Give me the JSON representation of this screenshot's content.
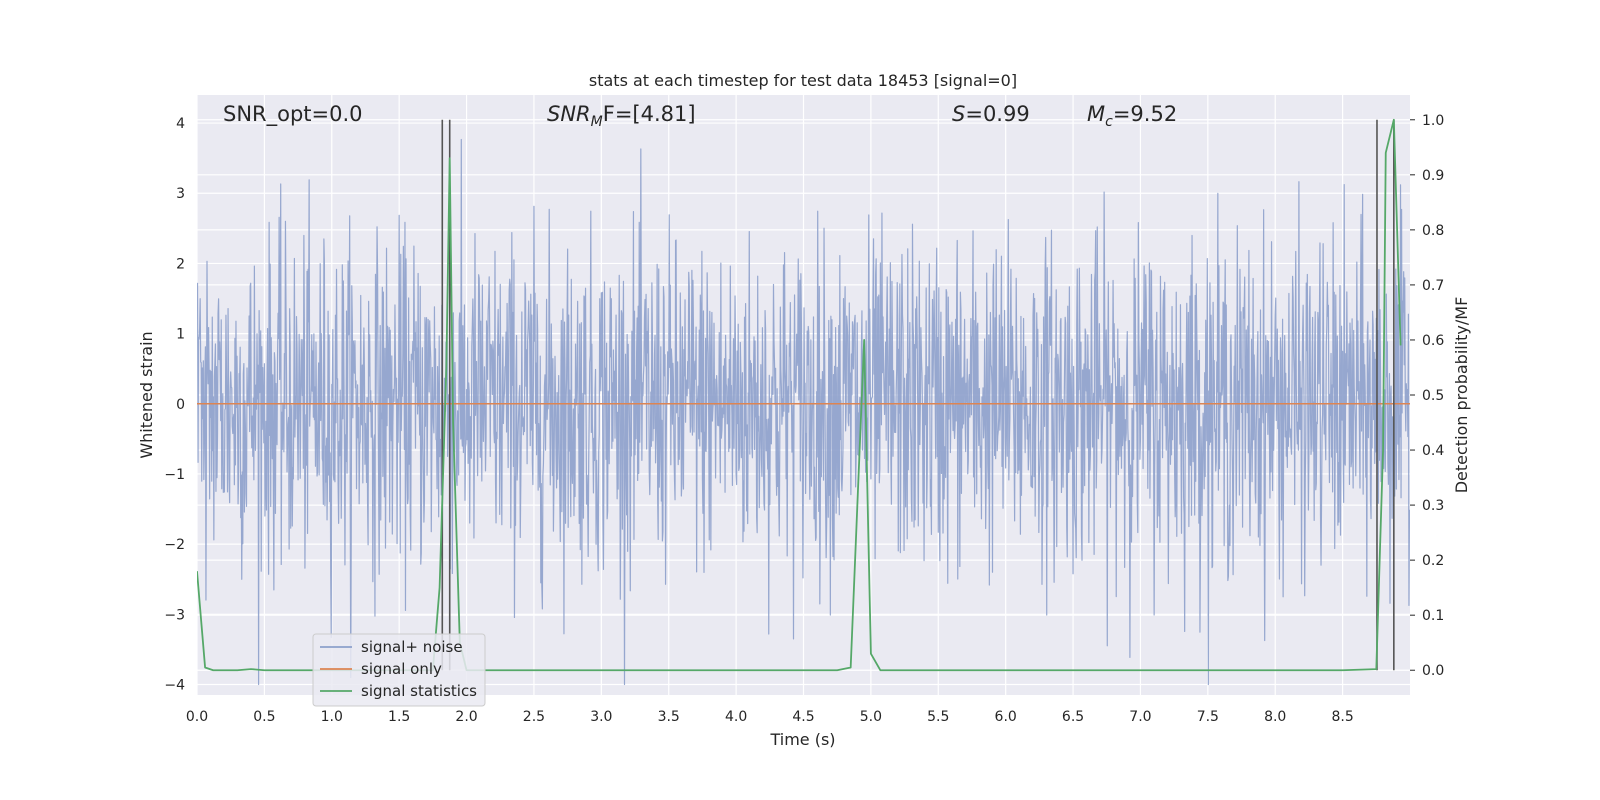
{
  "chart_data": {
    "type": "line",
    "title": "stats at each timestep for test data 18453 [signal=0]",
    "xlabel": "Time (s)",
    "ylabel_left": "Whitened strain",
    "ylabel_right": "Detection probability/MF",
    "xlim": [
      0.0,
      9.0
    ],
    "ylim_left": [
      -4.15,
      4.4
    ],
    "ylim_right": [
      -0.045,
      1.045
    ],
    "x_ticks": [
      "0.0",
      "0.5",
      "1.0",
      "1.5",
      "2.0",
      "2.5",
      "3.0",
      "3.5",
      "4.0",
      "4.5",
      "5.0",
      "5.5",
      "6.0",
      "6.5",
      "7.0",
      "7.5",
      "8.0",
      "8.5"
    ],
    "y_left_ticks": [
      "4",
      "3",
      "2",
      "1",
      "0",
      "−1",
      "−2",
      "−3",
      "−4"
    ],
    "y_right_ticks": [
      "1.0",
      "0.9",
      "0.8",
      "0.7",
      "0.6",
      "0.5",
      "0.4",
      "0.3",
      "0.2",
      "0.1",
      "0.0"
    ],
    "grid": true,
    "legend_position": "lower-left",
    "colors": {
      "noise": "#8da0cb",
      "signal_only": "#dd8452",
      "statistics": "#55a868",
      "vline": "#555555",
      "background": "#eaeaf2"
    },
    "annotations": {
      "snr_opt": "SNR_opt=0.0",
      "snr_mf_main": "SNR",
      "snr_mf_sub": "M",
      "snr_mf_tail": "F=[4.81]",
      "s_main": "S",
      "s_tail": "=0.99",
      "mc_main": "M",
      "mc_sub": "c",
      "mc_tail": "=9.52"
    },
    "legend": [
      {
        "label": "signal+ noise",
        "key": "noise"
      },
      {
        "label": "signal only",
        "key": "signal_only"
      },
      {
        "label": "signal statistics",
        "key": "statistics"
      }
    ],
    "series": [
      {
        "name": "signal+ noise",
        "axis": "left",
        "kind": "noise",
        "duration": 9.0,
        "sample_rate": 256,
        "approx_range": [
          -4.0,
          4.0
        ]
      },
      {
        "name": "signal only",
        "axis": "left",
        "x": [
          0.0,
          9.0
        ],
        "y": [
          0.0,
          0.0
        ]
      },
      {
        "name": "signal statistics",
        "axis": "right",
        "x": [
          0.0,
          0.06,
          0.12,
          0.3,
          0.4,
          0.5,
          1.0,
          1.5,
          1.75,
          1.8,
          1.85,
          1.875,
          1.9,
          1.95,
          2.0,
          2.5,
          3.0,
          3.5,
          4.0,
          4.5,
          4.75,
          4.85,
          4.95,
          5.0,
          5.07,
          5.5,
          6.0,
          6.5,
          7.0,
          7.5,
          8.0,
          8.5,
          8.75,
          8.8,
          8.82,
          8.88,
          8.93
        ],
        "y": [
          0.18,
          0.005,
          0.0,
          0.0,
          0.002,
          0.0,
          0.0,
          0.0,
          0.0,
          0.15,
          0.55,
          0.93,
          0.45,
          0.05,
          0.0,
          0.0,
          0.0,
          0.0,
          0.0,
          0.0,
          0.0,
          0.005,
          0.6,
          0.03,
          0.0,
          0.0,
          0.0,
          0.0,
          0.0,
          0.0,
          0.0,
          0.0,
          0.002,
          0.4,
          0.94,
          1.0,
          0.59
        ]
      }
    ],
    "vlines": [
      1.82,
      1.875,
      8.755,
      8.88
    ]
  }
}
